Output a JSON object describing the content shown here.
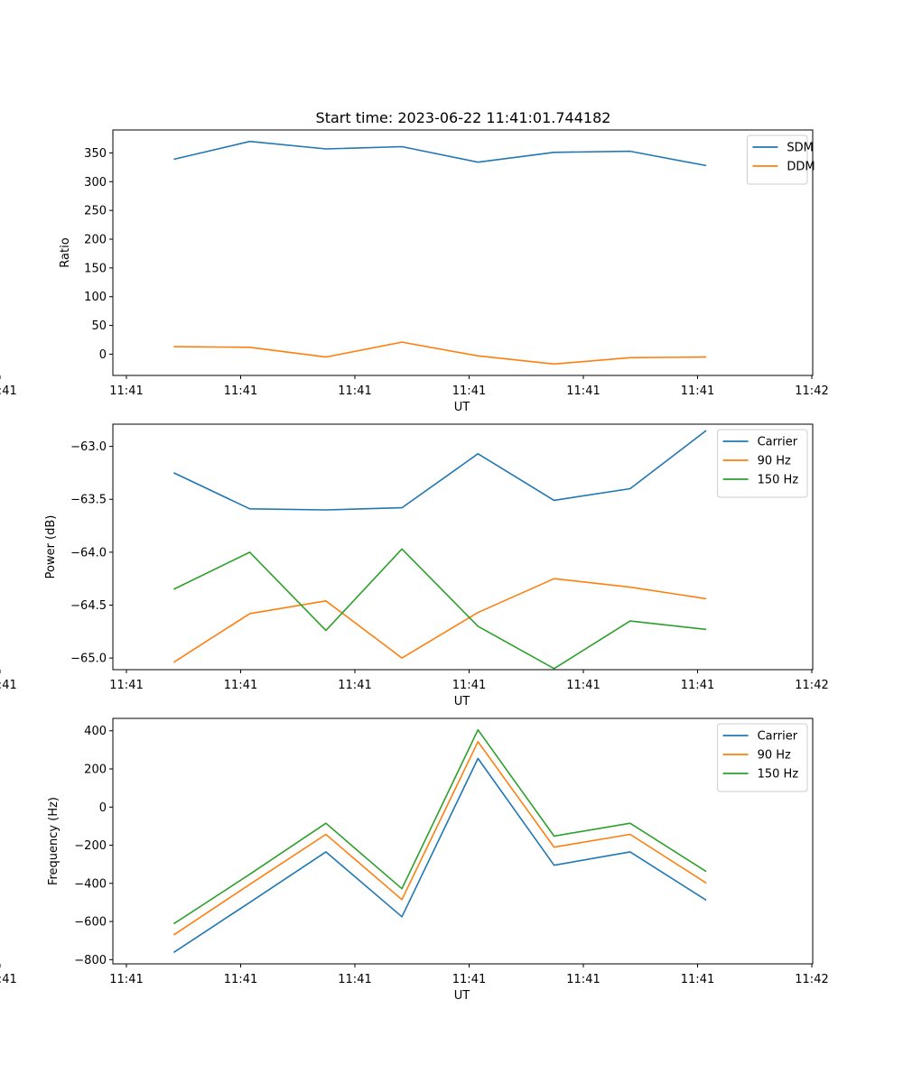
{
  "figure_title": "Start time: 2023-06-22 11:41:01.744182",
  "colors": {
    "blue": "#1f77b4",
    "orange": "#ff7f0e",
    "green": "#2ca02c"
  },
  "chart_data": [
    {
      "type": "line",
      "title": "Start time: 2023-06-22 11:41:01.744182",
      "xlabel": "UT",
      "ylabel": "Ratio",
      "x_tick_labels": [
        "11:41",
        "11:41",
        "11:41",
        "11:41",
        "11:41",
        "11:41",
        "11:41"
      ],
      "x_tick_last": "11:42",
      "x": [
        1,
        2,
        3,
        4,
        5,
        6,
        7,
        8
      ],
      "xlim": [
        0.2,
        9.4
      ],
      "ylim": [
        -37,
        390
      ],
      "yticks": [
        0,
        50,
        100,
        150,
        200,
        250,
        300,
        350
      ],
      "legend": "upper-right",
      "series": [
        {
          "name": "SDM",
          "color": "#1f77b4",
          "values": [
            339,
            370,
            357,
            361,
            334,
            351,
            353,
            328
          ]
        },
        {
          "name": "DDM",
          "color": "#ff7f0e",
          "values": [
            13,
            12,
            -5,
            21,
            -3,
            -17,
            -6,
            -5
          ]
        }
      ]
    },
    {
      "type": "line",
      "title": "",
      "xlabel": "UT",
      "ylabel": "Power (dB)",
      "x_tick_labels": [
        "11:41",
        "11:41",
        "11:41",
        "11:41",
        "11:41",
        "11:41",
        "11:41"
      ],
      "x_tick_last": "11:42",
      "x": [
        1,
        2,
        3,
        4,
        5,
        6,
        7,
        8
      ],
      "xlim": [
        0.2,
        9.4
      ],
      "ylim": [
        -65.11,
        -62.79
      ],
      "yticks": [
        -65.0,
        -64.5,
        -64.0,
        -63.5,
        -63.0
      ],
      "ytick_labels": [
        "−65.0",
        "−64.5",
        "−64.0",
        "−63.5",
        "−63.0"
      ],
      "legend": "upper-right",
      "series": [
        {
          "name": "Carrier",
          "color": "#1f77b4",
          "values": [
            -63.25,
            -63.59,
            -63.6,
            -63.58,
            -63.07,
            -63.51,
            -63.4,
            -62.85
          ]
        },
        {
          "name": "90 Hz",
          "color": "#ff7f0e",
          "values": [
            -65.04,
            -64.58,
            -64.46,
            -65.0,
            -64.57,
            -64.25,
            -64.33,
            -64.44
          ]
        },
        {
          "name": "150 Hz",
          "color": "#2ca02c",
          "values": [
            -64.35,
            -64.0,
            -64.74,
            -63.97,
            -64.7,
            -65.1,
            -64.65,
            -64.73
          ]
        }
      ]
    },
    {
      "type": "line",
      "title": "",
      "xlabel": "UT",
      "ylabel": "Frequency (Hz)",
      "x_tick_labels": [
        "11:41",
        "11:41",
        "11:41",
        "11:41",
        "11:41",
        "11:41",
        "11:41"
      ],
      "x_tick_last": "11:42",
      "x": [
        1,
        2,
        3,
        4,
        5,
        6,
        7,
        8
      ],
      "xlim": [
        0.2,
        9.4
      ],
      "ylim": [
        -822,
        465
      ],
      "yticks": [
        -800,
        -600,
        -400,
        -200,
        0,
        200,
        400
      ],
      "ytick_labels": [
        "−800",
        "−600",
        "−400",
        "−200",
        "0",
        "200",
        "400"
      ],
      "legend": "upper-right",
      "series": [
        {
          "name": "Carrier",
          "color": "#1f77b4",
          "values": [
            -762,
            -500,
            -235,
            -575,
            255,
            -305,
            -235,
            -488
          ]
        },
        {
          "name": "90 Hz",
          "color": "#ff7f0e",
          "values": [
            -670,
            -405,
            -143,
            -485,
            343,
            -210,
            -143,
            -398
          ]
        },
        {
          "name": "150 Hz",
          "color": "#2ca02c",
          "values": [
            -612,
            -352,
            -85,
            -428,
            405,
            -152,
            -85,
            -338
          ]
        }
      ]
    }
  ]
}
